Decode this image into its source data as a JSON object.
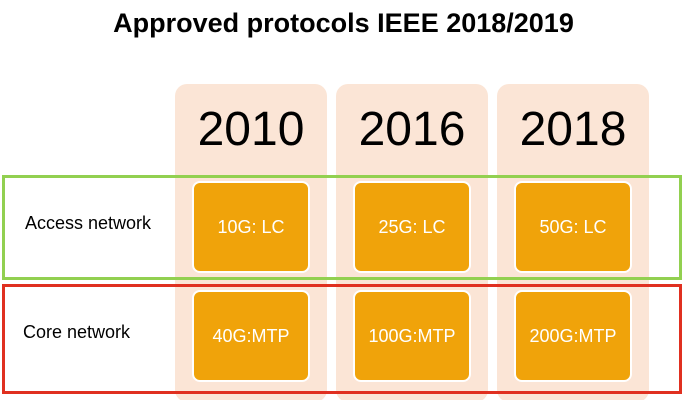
{
  "title": "Approved protocols IEEE 2018/2019",
  "columns": [
    {
      "year": "2010"
    },
    {
      "year": "2016"
    },
    {
      "year": "2018"
    }
  ],
  "rows": [
    {
      "label": "Access network",
      "frame_color": "#92d050",
      "cells": [
        "10G: LC",
        "25G: LC",
        "50G: LC"
      ]
    },
    {
      "label": "Core network",
      "frame_color": "#e03020",
      "cells": [
        "40G:MTP",
        "100G:MTP",
        "200G:MTP"
      ]
    }
  ],
  "colors": {
    "column_background": "#fbe5d6",
    "cell_fill": "#f0a30a",
    "cell_text": "#ffffff"
  }
}
